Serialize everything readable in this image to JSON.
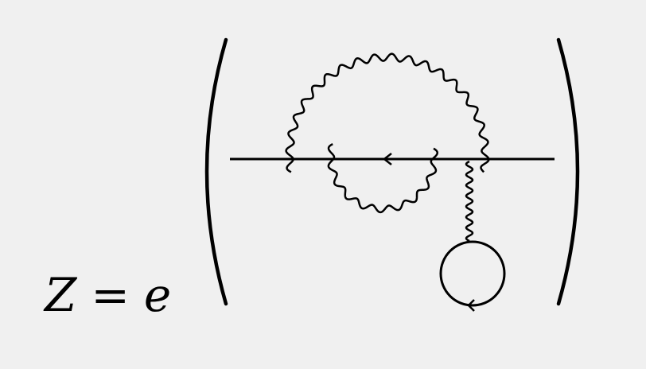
{
  "equation": {
    "lhs": "Z",
    "operator": "=",
    "base": "e"
  },
  "diagram": {
    "stroke_color": "#000000",
    "background_color": "#f0f0f0",
    "elements": [
      {
        "kind": "parenthesis",
        "side": "left"
      },
      {
        "kind": "parenthesis",
        "side": "right"
      },
      {
        "kind": "fermion-line",
        "arrow": "left"
      },
      {
        "kind": "photon-arc",
        "position": "above"
      },
      {
        "kind": "photon-arc",
        "position": "below"
      },
      {
        "kind": "photon-line",
        "orientation": "vertical"
      },
      {
        "kind": "fermion-loop",
        "arrow": "bottom"
      }
    ]
  }
}
